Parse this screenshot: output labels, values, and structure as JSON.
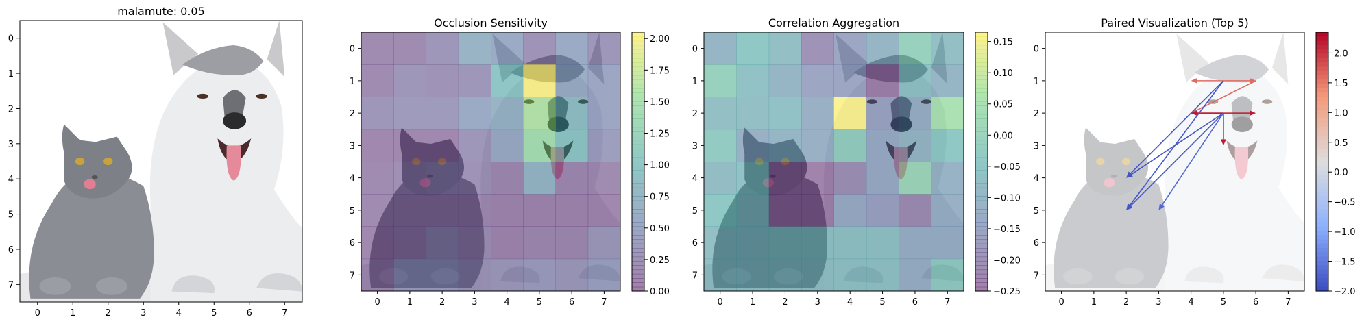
{
  "chart_data": [
    {
      "type": "image",
      "title": "malamute: 0.05",
      "image_label": "photo-cat-and-husky",
      "xticks": [
        0,
        1,
        2,
        3,
        4,
        5,
        6,
        7
      ],
      "yticks": [
        0,
        1,
        2,
        3,
        4,
        5,
        6,
        7
      ],
      "xlim": [
        -0.5,
        7.5
      ],
      "ylim": [
        7.5,
        -0.5
      ]
    },
    {
      "type": "heatmap",
      "title": "Occlusion Sensitivity",
      "xticks": [
        0,
        1,
        2,
        3,
        4,
        5,
        6,
        7
      ],
      "yticks": [
        0,
        1,
        2,
        3,
        4,
        5,
        6,
        7
      ],
      "xlim": [
        -0.5,
        7.5
      ],
      "ylim": [
        7.5,
        -0.5
      ],
      "colormap": "viridis",
      "alpha": 0.5,
      "colorbar": {
        "min": 0.0,
        "max": 2.05,
        "ticks": [
          0.0,
          0.25,
          0.5,
          0.75,
          1.0,
          1.25,
          1.5,
          1.75,
          2.0
        ],
        "tick_labels": [
          "0.00",
          "0.25",
          "0.50",
          "0.75",
          "1.00",
          "1.25",
          "1.50",
          "1.75",
          "2.00"
        ]
      },
      "matrix": [
        [
          0.15,
          0.15,
          0.3,
          0.7,
          0.55,
          0.25,
          0.55,
          0.3
        ],
        [
          0.15,
          0.3,
          0.25,
          0.3,
          1.0,
          2.05,
          0.6,
          0.5
        ],
        [
          0.3,
          0.35,
          0.35,
          0.55,
          0.7,
          1.6,
          0.9,
          0.5
        ],
        [
          0.1,
          0.1,
          0.1,
          0.3,
          0.55,
          1.45,
          1.0,
          0.4
        ],
        [
          0.15,
          0.2,
          0.25,
          0.25,
          0.15,
          0.75,
          0.15,
          0.15
        ],
        [
          0.15,
          0.15,
          0.15,
          0.15,
          0.1,
          0.1,
          0.1,
          0.1
        ],
        [
          0.1,
          0.15,
          0.3,
          0.2,
          0.1,
          0.15,
          0.15,
          0.35
        ],
        [
          0.15,
          0.4,
          0.4,
          0.3,
          0.35,
          0.4,
          0.35,
          0.45
        ]
      ]
    },
    {
      "type": "heatmap",
      "title": "Correlation Aggregation",
      "xticks": [
        0,
        1,
        2,
        3,
        4,
        5,
        6,
        7
      ],
      "yticks": [
        0,
        1,
        2,
        3,
        4,
        5,
        6,
        7
      ],
      "xlim": [
        -0.5,
        7.5
      ],
      "ylim": [
        7.5,
        -0.5
      ],
      "colormap": "viridis",
      "alpha": 0.5,
      "colorbar": {
        "min": -0.25,
        "max": 0.165,
        "ticks": [
          -0.25,
          -0.2,
          -0.15,
          -0.1,
          -0.05,
          0.0,
          0.05,
          0.1,
          0.15
        ],
        "tick_labels": [
          "−0.25",
          "−0.20",
          "−0.15",
          "−0.10",
          "−0.05",
          "0.00",
          "0.05",
          "0.10",
          "0.15"
        ]
      },
      "matrix": [
        [
          -0.1,
          -0.04,
          -0.07,
          -0.2,
          -0.15,
          -0.1,
          -0.01,
          -0.07
        ],
        [
          -0.01,
          -0.06,
          -0.1,
          -0.15,
          -0.15,
          -0.24,
          -0.06,
          -0.1
        ],
        [
          -0.07,
          -0.07,
          -0.06,
          -0.12,
          0.16,
          -0.15,
          -0.12,
          0.05
        ],
        [
          -0.03,
          -0.12,
          -0.1,
          -0.12,
          -0.02,
          -0.13,
          -0.1,
          -0.04
        ],
        [
          -0.08,
          -0.06,
          -0.24,
          -0.24,
          -0.2,
          -0.13,
          0.01,
          -0.11
        ],
        [
          -0.04,
          -0.07,
          -0.24,
          -0.24,
          -0.13,
          -0.16,
          -0.21,
          -0.12
        ],
        [
          -0.07,
          -0.07,
          -0.06,
          -0.06,
          -0.06,
          -0.06,
          -0.12,
          -0.12
        ],
        [
          -0.07,
          -0.07,
          -0.07,
          -0.07,
          -0.06,
          -0.06,
          -0.12,
          -0.03
        ]
      ]
    },
    {
      "type": "vector-field",
      "title": "Paired Visualization (Top 5)",
      "xticks": [
        0,
        1,
        2,
        3,
        4,
        5,
        6,
        7
      ],
      "yticks": [
        0,
        1,
        2,
        3,
        4,
        5,
        6,
        7
      ],
      "xlim": [
        -0.5,
        7.5
      ],
      "ylim": [
        7.5,
        -0.5
      ],
      "colormap": "coolwarm",
      "colorbar": {
        "min": -2.0,
        "max": 2.35,
        "ticks": [
          -2.0,
          -1.5,
          -1.0,
          -0.5,
          0.0,
          0.5,
          1.0,
          1.5,
          2.0
        ],
        "tick_labels": [
          "−2.0",
          "−1.5",
          "−1.0",
          "−0.5",
          "0.0",
          "0.5",
          "1.0",
          "1.5",
          "2.0"
        ]
      },
      "arrows": [
        {
          "from": [
            5,
            1
          ],
          "to": [
            4,
            1
          ],
          "value": 1.6
        },
        {
          "from": [
            5,
            1
          ],
          "to": [
            6,
            1
          ],
          "value": 1.6
        },
        {
          "from": [
            6,
            1
          ],
          "to": [
            4,
            2
          ],
          "value": 1.6
        },
        {
          "from": [
            4,
            2
          ],
          "to": [
            6,
            2
          ],
          "value": 2.2
        },
        {
          "from": [
            5,
            2
          ],
          "to": [
            4,
            2
          ],
          "value": 2.2
        },
        {
          "from": [
            5,
            2
          ],
          "to": [
            5,
            3
          ],
          "value": 2.2
        },
        {
          "from": [
            5,
            1
          ],
          "to": [
            2,
            4
          ],
          "value": -1.9
        },
        {
          "from": [
            5,
            1
          ],
          "to": [
            2,
            5
          ],
          "value": -1.9
        },
        {
          "from": [
            5,
            2
          ],
          "to": [
            2,
            4
          ],
          "value": -1.9
        },
        {
          "from": [
            5,
            2
          ],
          "to": [
            2,
            5
          ],
          "value": -1.9
        },
        {
          "from": [
            5,
            2
          ],
          "to": [
            3,
            5
          ],
          "value": -1.7
        }
      ]
    }
  ]
}
